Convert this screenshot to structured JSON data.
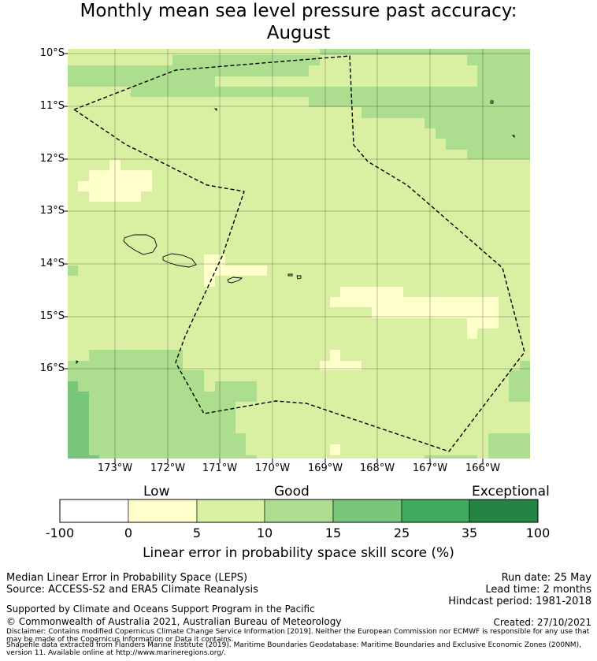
{
  "title": {
    "line1": "Monthly mean sea level pressure past accuracy:",
    "line2": "August"
  },
  "map": {
    "lat_labels": [
      "10°S",
      "11°S",
      "12°S",
      "13°S",
      "14°S",
      "15°S",
      "16°S"
    ],
    "lon_labels": [
      "173°W",
      "172°W",
      "171°W",
      "170°W",
      "169°W",
      "168°W",
      "167°W",
      "166°W"
    ],
    "region": {
      "lon_range": [
        -173.9,
        -165.1
      ],
      "lat_range": [
        -17.7,
        -9.9
      ]
    },
    "category_colors": {
      "low": "#ffffcc",
      "good_5_10": "#d9f0a3",
      "good_10_15": "#addd8e",
      "good_15_25": "#78c679",
      "good_25_35": "#41ab5d",
      "exceptional": "#238443"
    },
    "boundary_style": "dashed"
  },
  "colorbar": {
    "categories": [
      "Low",
      "Good",
      "Exceptional"
    ],
    "ticks": [
      "-100",
      "0",
      "5",
      "10",
      "15",
      "25",
      "35",
      "100"
    ],
    "colors": [
      "#ffffff",
      "#ffffcc",
      "#d9f0a3",
      "#addd8e",
      "#78c679",
      "#41ab5d",
      "#238443"
    ],
    "label": "Linear error in probability space skill score (%)"
  },
  "footer": {
    "line1": "Median Linear Error in Probability Space (LEPS)",
    "line2": "Source: ACCESS-S2 and ERA5 Climate Reanalysis",
    "run_date": "Run date: 25 May",
    "lead_time": "Lead time: 2 months",
    "hindcast": "Hindcast period: 1981-2018",
    "support": "Supported by Climate and Oceans Support Program in the Pacific",
    "copyright": "© Commonwealth of Australia 2021, Australian Bureau of Meteorology",
    "created": "Created: 27/10/2021",
    "disclaimer": "Disclaimer: Contains modified Copernicus Climate Change Service Information [2019]. Neither the European Commission nor ECMWF is responsible for any use that may be made of the Copernicus Information or Data it contains.",
    "shapefile": "Shapefile data extracted from Flanders Marine Institute (2019). Maritime Boundaries Geodatabase: Maritime Boundaries and Exclusive Economic Zones (200NM), version 11. Available online at http://www.marineregions.org/."
  }
}
